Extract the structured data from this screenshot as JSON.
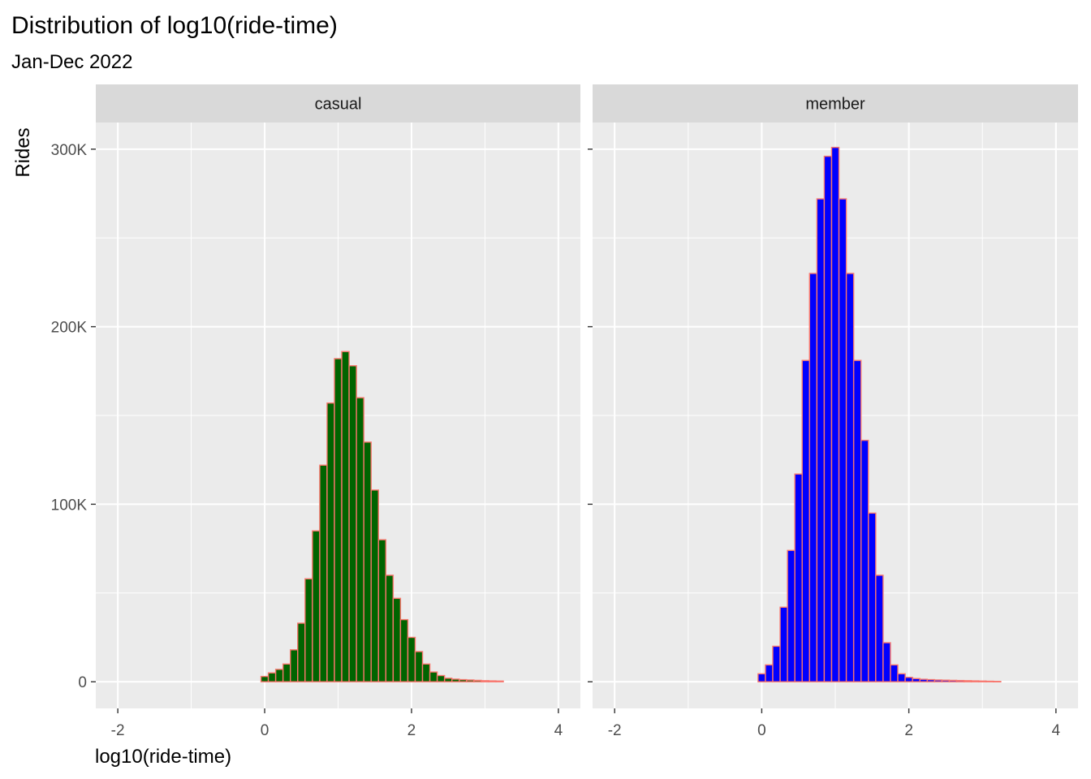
{
  "title": "Distribution of log10(ride-time)",
  "subtitle": "Jan-Dec 2022",
  "xlabel": "log10(ride-time)",
  "ylabel": "Rides",
  "colors": {
    "panel_background": "#ebebeb",
    "strip_background": "#d9d9d9",
    "grid": "#ffffff",
    "bar_outline": "#f8766d",
    "casual_fill": "#006400",
    "member_fill": "#0000ff"
  },
  "chart_data": [
    {
      "type": "bar",
      "panel": "casual",
      "xlim": [
        -2.3,
        4.3
      ],
      "ylim": [
        -15000,
        315000
      ],
      "x_ticks": [
        -2,
        0,
        2,
        4
      ],
      "x_tick_labels": [
        "-2",
        "0",
        "2",
        "4"
      ],
      "y_ticks": [
        0,
        100000,
        200000,
        300000
      ],
      "y_tick_labels": [
        "0",
        "100K",
        "200K",
        "300K"
      ],
      "grid": true,
      "bin_width": 0.1,
      "bin_centers": [
        0.0,
        0.1,
        0.2,
        0.3,
        0.4,
        0.5,
        0.6,
        0.7,
        0.8,
        0.9,
        1.0,
        1.1,
        1.2,
        1.3,
        1.4,
        1.5,
        1.6,
        1.7,
        1.8,
        1.9,
        2.0,
        2.1,
        2.2,
        2.3,
        2.4,
        2.5,
        2.6,
        2.7,
        2.8,
        2.9,
        3.0,
        3.1,
        3.2
      ],
      "values": [
        3000,
        5000,
        7000,
        10000,
        18000,
        33000,
        58000,
        85000,
        122000,
        157000,
        182000,
        186000,
        178000,
        160000,
        135000,
        108000,
        80000,
        60000,
        47000,
        35000,
        25000,
        17000,
        10000,
        5500,
        3500,
        2000,
        1500,
        1200,
        1000,
        800,
        600,
        500,
        400
      ]
    },
    {
      "type": "bar",
      "panel": "member",
      "xlim": [
        -2.3,
        4.3
      ],
      "ylim": [
        -15000,
        315000
      ],
      "x_ticks": [
        -2,
        0,
        2,
        4
      ],
      "x_tick_labels": [
        "-2",
        "0",
        "2",
        "4"
      ],
      "y_ticks": [
        0,
        100000,
        200000,
        300000
      ],
      "y_tick_labels": [
        "0",
        "100K",
        "200K",
        "300K"
      ],
      "grid": true,
      "bin_width": 0.1,
      "bin_centers": [
        0.0,
        0.1,
        0.2,
        0.3,
        0.4,
        0.5,
        0.6,
        0.7,
        0.8,
        0.9,
        1.0,
        1.1,
        1.2,
        1.3,
        1.4,
        1.5,
        1.6,
        1.7,
        1.8,
        1.9,
        2.0,
        2.1,
        2.2,
        2.3,
        2.4,
        2.5,
        2.6,
        2.7,
        2.8,
        2.9,
        3.0,
        3.1,
        3.2
      ],
      "values": [
        4500,
        9500,
        20000,
        42000,
        74000,
        117000,
        181000,
        230000,
        272000,
        296000,
        301000,
        272000,
        230000,
        181000,
        136000,
        95000,
        60000,
        22000,
        9500,
        4500,
        2500,
        1800,
        1400,
        1200,
        1000,
        900,
        800,
        700,
        600,
        500,
        400,
        300,
        200
      ]
    }
  ]
}
